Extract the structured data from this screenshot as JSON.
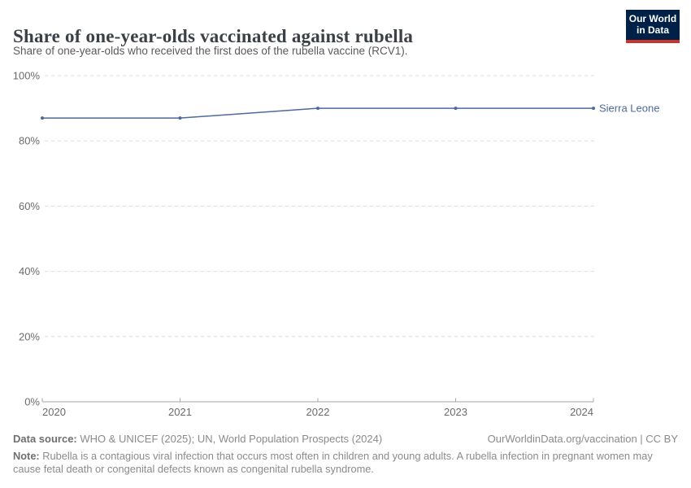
{
  "header": {
    "title": "Share of one-year-olds vaccinated against rubella",
    "subtitle": "Share of one-year-olds who received the first does of the rubella vaccine (RCV1).",
    "logo": {
      "line1": "Our World",
      "line2": "in Data"
    }
  },
  "chart_data": {
    "type": "line",
    "title": "Share of one-year-olds vaccinated against rubella",
    "x": [
      2020,
      2021,
      2022,
      2023,
      2024
    ],
    "xtick_labels": [
      "2020",
      "2021",
      "2022",
      "2023",
      "2024"
    ],
    "series": [
      {
        "name": "Sierra Leone",
        "values": [
          87,
          87,
          90,
          90,
          90
        ],
        "color": "#4C6A9C"
      }
    ],
    "xlabel": "",
    "ylabel": "",
    "ylim": [
      0,
      100
    ],
    "yticks": [
      0,
      20,
      40,
      60,
      80,
      100
    ],
    "ytick_labels": [
      "0%",
      "20%",
      "40%",
      "60%",
      "80%",
      "100%"
    ],
    "grid": "horizontal-dashed",
    "legend_position": "end-of-line"
  },
  "footer": {
    "source_label": "Data source:",
    "source_text": " WHO & UNICEF (2025); UN, World Population Prospects (2024)",
    "link_text": "OurWorldinData.org/vaccination | CC BY",
    "note_label": "Note:",
    "note_text": " Rubella is a contagious viral infection that occurs most often in children and young adults. A rubella infection in pregnant women may cause fetal death or congenital defects known as congenital rubella syndrome."
  },
  "colors": {
    "series_blue": "#4C6A9C",
    "logo_navy": "#002147",
    "logo_red": "#C9352C",
    "gridline": "#DCDCDC",
    "axis": "#A5A5A5",
    "tick_text": "#6B6B6B",
    "title_text": "#3B3F46",
    "subtitle_text": "#5A5A5A",
    "footer_text": "#8A8A8A"
  }
}
